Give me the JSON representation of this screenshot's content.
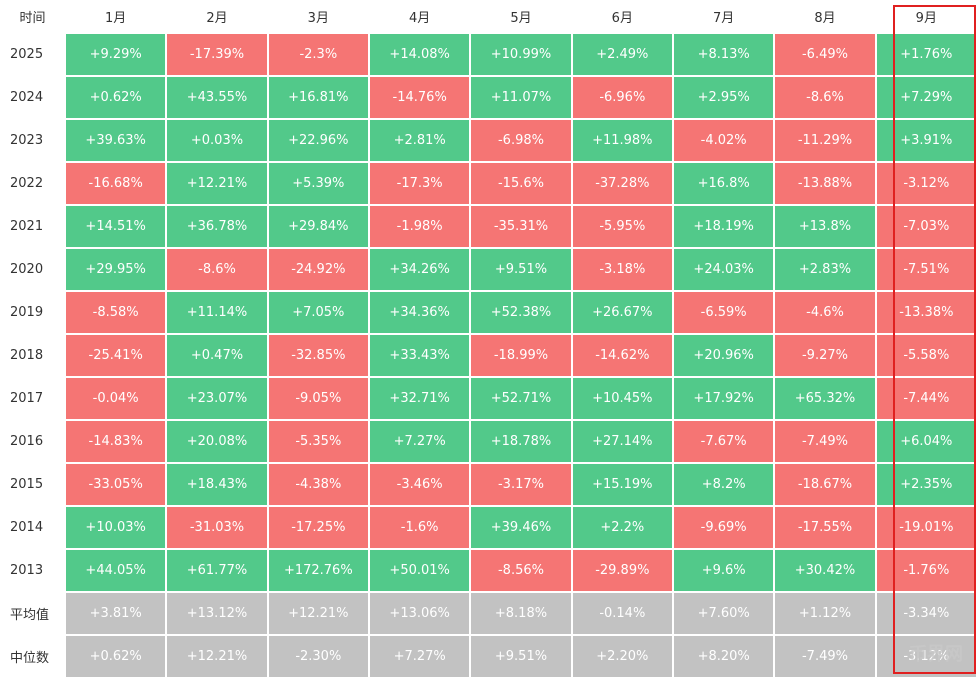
{
  "table": {
    "header": [
      "时间",
      "1月",
      "2月",
      "3月",
      "4月",
      "5月",
      "6月",
      "7月",
      "8月",
      "9月"
    ],
    "rows": [
      [
        "2025",
        "+9.29%",
        "-17.39%",
        "-2.3%",
        "+14.08%",
        "+10.99%",
        "+2.49%",
        "+8.13%",
        "-6.49%",
        "+1.76%"
      ],
      [
        "2024",
        "+0.62%",
        "+43.55%",
        "+16.81%",
        "-14.76%",
        "+11.07%",
        "-6.96%",
        "+2.95%",
        "-8.6%",
        "+7.29%"
      ],
      [
        "2023",
        "+39.63%",
        "+0.03%",
        "+22.96%",
        "+2.81%",
        "-6.98%",
        "+11.98%",
        "-4.02%",
        "-11.29%",
        "+3.91%"
      ],
      [
        "2022",
        "-16.68%",
        "+12.21%",
        "+5.39%",
        "-17.3%",
        "-15.6%",
        "-37.28%",
        "+16.8%",
        "-13.88%",
        "-3.12%"
      ],
      [
        "2021",
        "+14.51%",
        "+36.78%",
        "+29.84%",
        "-1.98%",
        "-35.31%",
        "-5.95%",
        "+18.19%",
        "+13.8%",
        "-7.03%"
      ],
      [
        "2020",
        "+29.95%",
        "-8.6%",
        "-24.92%",
        "+34.26%",
        "+9.51%",
        "-3.18%",
        "+24.03%",
        "+2.83%",
        "-7.51%"
      ],
      [
        "2019",
        "-8.58%",
        "+11.14%",
        "+7.05%",
        "+34.36%",
        "+52.38%",
        "+26.67%",
        "-6.59%",
        "-4.6%",
        "-13.38%"
      ],
      [
        "2018",
        "-25.41%",
        "+0.47%",
        "-32.85%",
        "+33.43%",
        "-18.99%",
        "-14.62%",
        "+20.96%",
        "-9.27%",
        "-5.58%"
      ],
      [
        "2017",
        "-0.04%",
        "+23.07%",
        "-9.05%",
        "+32.71%",
        "+52.71%",
        "+10.45%",
        "+17.92%",
        "+65.32%",
        "-7.44%"
      ],
      [
        "2016",
        "-14.83%",
        "+20.08%",
        "-5.35%",
        "+7.27%",
        "+18.78%",
        "+27.14%",
        "-7.67%",
        "-7.49%",
        "+6.04%"
      ],
      [
        "2015",
        "-33.05%",
        "+18.43%",
        "-4.38%",
        "-3.46%",
        "-3.17%",
        "+15.19%",
        "+8.2%",
        "-18.67%",
        "+2.35%"
      ],
      [
        "2014",
        "+10.03%",
        "-31.03%",
        "-17.25%",
        "-1.6%",
        "+39.46%",
        "+2.2%",
        "-9.69%",
        "-17.55%",
        "-19.01%"
      ],
      [
        "2013",
        "+44.05%",
        "+61.77%",
        "+172.76%",
        "+50.01%",
        "-8.56%",
        "-29.89%",
        "+9.6%",
        "+30.42%",
        "-1.76%"
      ]
    ],
    "summary_rows": [
      [
        "平均值",
        "+3.81%",
        "+13.12%",
        "+12.21%",
        "+13.06%",
        "+8.18%",
        "-0.14%",
        "+7.60%",
        "+1.12%",
        "-3.34%"
      ],
      [
        "中位数",
        "+0.62%",
        "+12.21%",
        "-2.30%",
        "+7.27%",
        "+9.51%",
        "+2.20%",
        "+8.20%",
        "-7.49%",
        "-3.12%"
      ]
    ],
    "colors": {
      "positive": "#52c98a",
      "negative": "#f57574",
      "summary": "#c2c2c2"
    },
    "watermark": "币界网"
  }
}
